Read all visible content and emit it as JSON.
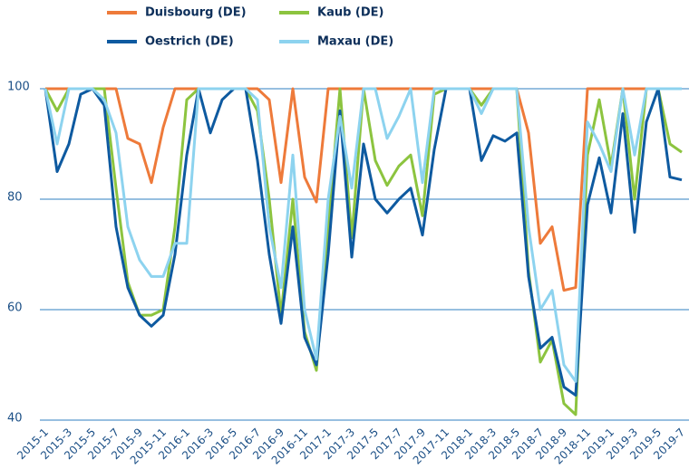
{
  "chart_data": {
    "type": "line",
    "categories": [
      "2015-1",
      null,
      "2015-3",
      null,
      "2015-5",
      null,
      "2015-7",
      null,
      "2015-9",
      null,
      "2015-11",
      null,
      "2016-1",
      null,
      "2016-3",
      null,
      "2016-5",
      null,
      "2016-7",
      null,
      "2016-9",
      null,
      "2016-11",
      null,
      "2017-1",
      null,
      "2017-3",
      null,
      "2017-5",
      null,
      "2017-7",
      null,
      "2017-9",
      null,
      "2017-11",
      null,
      "2018-1",
      null,
      "2018-3",
      null,
      "2018-5",
      null,
      "2018-7",
      null,
      "2018-9",
      null,
      "2018-11",
      null,
      "2019-1",
      null,
      "2019-3",
      null,
      "2019-5",
      null,
      "2019-7"
    ],
    "series": [
      {
        "name": "Duisbourg (DE)",
        "color": "#ee7a3a",
        "values": [
          100,
          100,
          100,
          100,
          100,
          100,
          100,
          91,
          90,
          83,
          93,
          100,
          100,
          100,
          100,
          100,
          100,
          100,
          100,
          98,
          83,
          100,
          84,
          79.5,
          100,
          100,
          100,
          100,
          100,
          100,
          100,
          100,
          100,
          100,
          100,
          100,
          100,
          100,
          100,
          100,
          100,
          92,
          72,
          75,
          63.5,
          64,
          100,
          100,
          100,
          100,
          100,
          100,
          100,
          100,
          100
        ]
      },
      {
        "name": "Kaub (DE)",
        "color": "#8cc43f",
        "values": [
          100,
          96,
          100,
          100,
          100,
          100,
          82,
          65,
          59,
          59,
          60,
          75,
          98,
          100,
          100,
          100,
          100,
          100,
          96,
          80,
          59,
          80,
          56,
          49,
          75,
          100,
          73,
          100,
          87,
          82.5,
          86,
          88,
          77,
          99,
          100,
          100,
          100,
          97,
          100,
          100,
          100,
          67,
          50.5,
          54.5,
          43,
          41,
          88,
          98,
          86,
          100,
          80,
          100,
          100,
          90,
          88.5
        ]
      },
      {
        "name": "Oestrich (DE)",
        "color": "#0e5aa0",
        "values": [
          100,
          85,
          90,
          99,
          100,
          97,
          75,
          64,
          59,
          57,
          59,
          70,
          88,
          100,
          92,
          98,
          100,
          100,
          87,
          70,
          57.5,
          75,
          55,
          50,
          70,
          96,
          69.5,
          90,
          80,
          77.5,
          80,
          82,
          73.5,
          89,
          100,
          100,
          100,
          87,
          91.5,
          90.5,
          92,
          66,
          53,
          55,
          46,
          44.5,
          79,
          87.5,
          77.5,
          95.5,
          74,
          94,
          100,
          84,
          83.5
        ]
      },
      {
        "name": "Maxau (DE)",
        "color": "#8dd3ef",
        "values": [
          100,
          90,
          100,
          100,
          100,
          98,
          92,
          75,
          69,
          66,
          66,
          72,
          72,
          100,
          100,
          100,
          100,
          100,
          98,
          75,
          64,
          88,
          60,
          51,
          80,
          95,
          82,
          100,
          100,
          91,
          95,
          100,
          83,
          100,
          100,
          100,
          100,
          95.5,
          100,
          100,
          100,
          75,
          60,
          63.5,
          50,
          47,
          94,
          90,
          85,
          100,
          88,
          100,
          100,
          100,
          100
        ]
      }
    ],
    "ylim": [
      40,
      100
    ],
    "yticks": [
      40,
      60,
      80,
      100
    ],
    "grid": true
  }
}
